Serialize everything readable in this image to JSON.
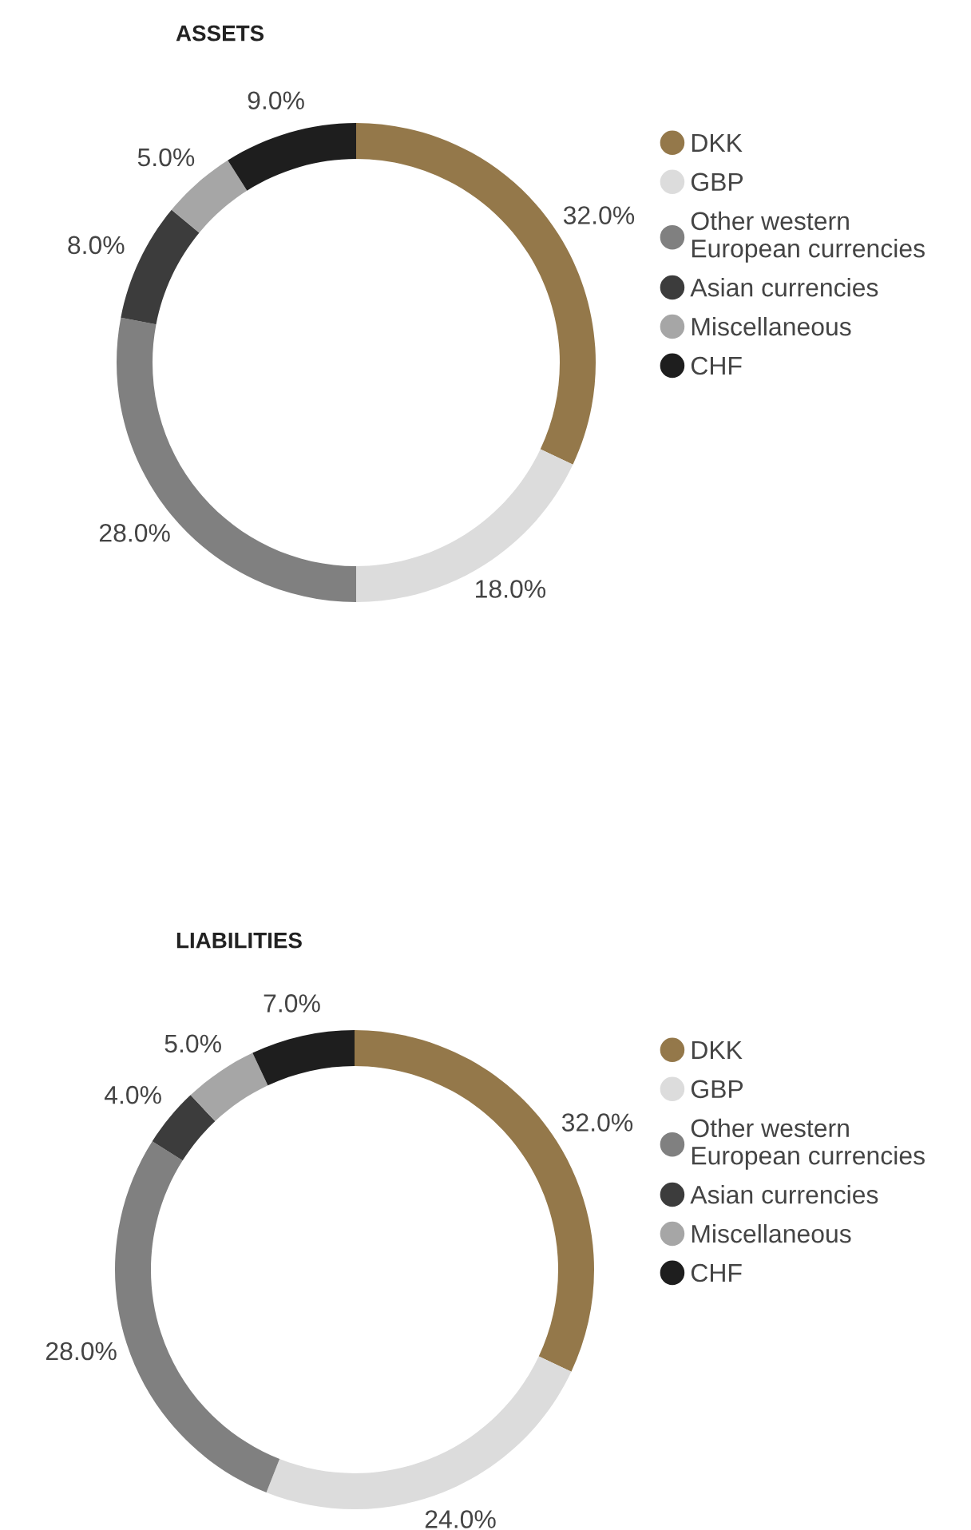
{
  "chart_data": [
    {
      "type": "donut",
      "title": "ASSETS",
      "categories": [
        "DKK",
        "GBP",
        "Other western\nEuropean currencies",
        "Asian currencies",
        "Miscellaneous",
        "CHF"
      ],
      "values": [
        32,
        18,
        28,
        8,
        5,
        9
      ],
      "value_labels": [
        "32.0%",
        "18.0%",
        "28.0%",
        "8.0%",
        "5.0%",
        "9.0%"
      ],
      "colors": [
        "#94784a",
        "#dcdcdc",
        "#808080",
        "#3c3c3c",
        "#a6a6a6",
        "#1e1e1e"
      ],
      "legend": "right"
    },
    {
      "type": "donut",
      "title": "LIABILITIES",
      "categories": [
        "DKK",
        "GBP",
        "Other western\nEuropean currencies",
        "Asian currencies",
        "Miscellaneous",
        "CHF"
      ],
      "values": [
        32,
        24,
        28,
        4,
        5,
        7
      ],
      "value_labels": [
        "32.0%",
        "24.0%",
        "28.0%",
        "4.0%",
        "5.0%",
        "7.0%"
      ],
      "colors": [
        "#94784a",
        "#dcdcdc",
        "#808080",
        "#3c3c3c",
        "#a6a6a6",
        "#1e1e1e"
      ],
      "legend": "right"
    }
  ]
}
